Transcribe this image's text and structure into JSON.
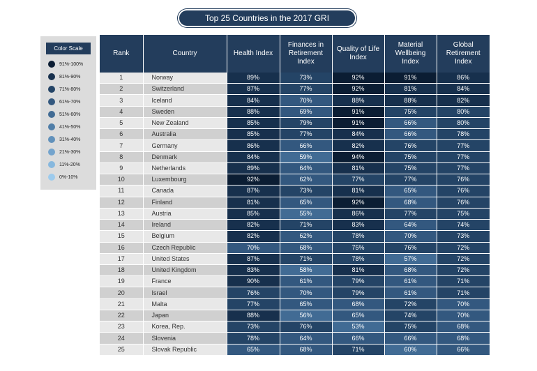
{
  "title": "Top 25 Countries in the 2017 GRI",
  "legend": {
    "title": "Color Scale",
    "items": [
      {
        "label": "91%-100%",
        "color": "#0b1d33"
      },
      {
        "label": "81%-90%",
        "color": "#17304d"
      },
      {
        "label": "71%-80%",
        "color": "#244466"
      },
      {
        "label": "61%-70%",
        "color": "#33587f"
      },
      {
        "label": "51%-60%",
        "color": "#416b94"
      },
      {
        "label": "41%-50%",
        "color": "#507ea8"
      },
      {
        "label": "31%-40%",
        "color": "#6191bb"
      },
      {
        "label": "21%-30%",
        "color": "#74a4cd"
      },
      {
        "label": "11%-20%",
        "color": "#87b8de"
      },
      {
        "label": "0%-10%",
        "color": "#9dcbed"
      }
    ]
  },
  "chart_data": {
    "type": "table",
    "title": "Top 25 Countries in the 2017 GRI",
    "columns": [
      "Rank",
      "Country",
      "Health Index",
      "Finances in Retirement Index",
      "Quality of Life Index",
      "Material Wellbeing Index",
      "Global Retirement Index"
    ],
    "rows": [
      [
        "1",
        "Norway",
        "89%",
        "73%",
        "92%",
        "91%",
        "86%"
      ],
      [
        "2",
        "Switzerland",
        "87%",
        "77%",
        "92%",
        "81%",
        "84%"
      ],
      [
        "3",
        "Iceland",
        "84%",
        "70%",
        "88%",
        "88%",
        "82%"
      ],
      [
        "4",
        "Sweden",
        "88%",
        "69%",
        "91%",
        "75%",
        "80%"
      ],
      [
        "5",
        "New Zealand",
        "85%",
        "79%",
        "91%",
        "66%",
        "80%"
      ],
      [
        "6",
        "Australia",
        "85%",
        "77%",
        "84%",
        "66%",
        "78%"
      ],
      [
        "7",
        "Germany",
        "86%",
        "66%",
        "82%",
        "76%",
        "77%"
      ],
      [
        "8",
        "Denmark",
        "84%",
        "59%",
        "94%",
        "75%",
        "77%"
      ],
      [
        "9",
        "Netherlands",
        "89%",
        "64%",
        "81%",
        "75%",
        "77%"
      ],
      [
        "10",
        "Luxembourg",
        "92%",
        "62%",
        "77%",
        "77%",
        "76%"
      ],
      [
        "11",
        "Canada",
        "87%",
        "73%",
        "81%",
        "65%",
        "76%"
      ],
      [
        "12",
        "Finland",
        "81%",
        "65%",
        "92%",
        "68%",
        "76%"
      ],
      [
        "13",
        "Austria",
        "85%",
        "55%",
        "86%",
        "77%",
        "75%"
      ],
      [
        "14",
        "Ireland",
        "82%",
        "71%",
        "83%",
        "64%",
        "74%"
      ],
      [
        "15",
        "Belgium",
        "82%",
        "62%",
        "78%",
        "70%",
        "73%"
      ],
      [
        "16",
        "Czech Republic",
        "70%",
        "68%",
        "75%",
        "76%",
        "72%"
      ],
      [
        "17",
        "United States",
        "87%",
        "71%",
        "78%",
        "57%",
        "72%"
      ],
      [
        "18",
        "United Kingdom",
        "83%",
        "58%",
        "81%",
        "68%",
        "72%"
      ],
      [
        "19",
        "France",
        "90%",
        "61%",
        "79%",
        "61%",
        "71%"
      ],
      [
        "20",
        "Israel",
        "76%",
        "70%",
        "79%",
        "61%",
        "71%"
      ],
      [
        "21",
        "Malta",
        "77%",
        "65%",
        "68%",
        "72%",
        "70%"
      ],
      [
        "22",
        "Japan",
        "88%",
        "56%",
        "65%",
        "74%",
        "70%"
      ],
      [
        "23",
        "Korea, Rep.",
        "73%",
        "76%",
        "53%",
        "75%",
        "68%"
      ],
      [
        "24",
        "Slovenia",
        "78%",
        "64%",
        "66%",
        "66%",
        "68%"
      ],
      [
        "25",
        "Slovak Republic",
        "65%",
        "68%",
        "71%",
        "60%",
        "66%"
      ]
    ]
  }
}
